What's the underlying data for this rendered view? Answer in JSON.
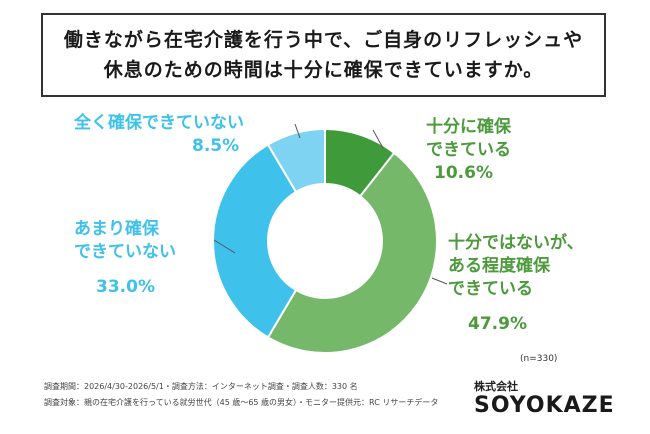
{
  "title": {
    "line1": "働きながら在宅介護を行う中で、ご自身のリフレッシュや",
    "line2": "休息のための時間は十分に確保できていますか。"
  },
  "chart_data": {
    "type": "pie",
    "donut": true,
    "slices": [
      {
        "label_lines": [
          "十分に確保",
          "できている"
        ],
        "value": 10.6,
        "value_label": "10.6%",
        "color": "#3f9a3a"
      },
      {
        "label_lines": [
          "十分ではないが、",
          "ある程度確保",
          "できている"
        ],
        "value": 47.9,
        "value_label": "47.9%",
        "color": "#75b86a"
      },
      {
        "label_lines": [
          "あまり確保",
          "できていない"
        ],
        "value": 33.0,
        "value_label": "33.0%",
        "color": "#3ec1ea"
      },
      {
        "label_lines": [
          "全く確保できていない"
        ],
        "value": 8.5,
        "value_label": "8.5%",
        "color": "#7fd3f2"
      }
    ],
    "sample_size": "(n=330)"
  },
  "footer": {
    "line1": "調査期間：2026/4/30-2026/5/1・調査方法：インターネット調査・調査人数：330 名",
    "line2": "調査対象：親の在宅介護を行っている就労世代（45 歳～65 歳の男女）・モニター提供元：RC リサーチデータ"
  },
  "company": {
    "label": "株式会社",
    "brand": "SOYOKAZE"
  }
}
